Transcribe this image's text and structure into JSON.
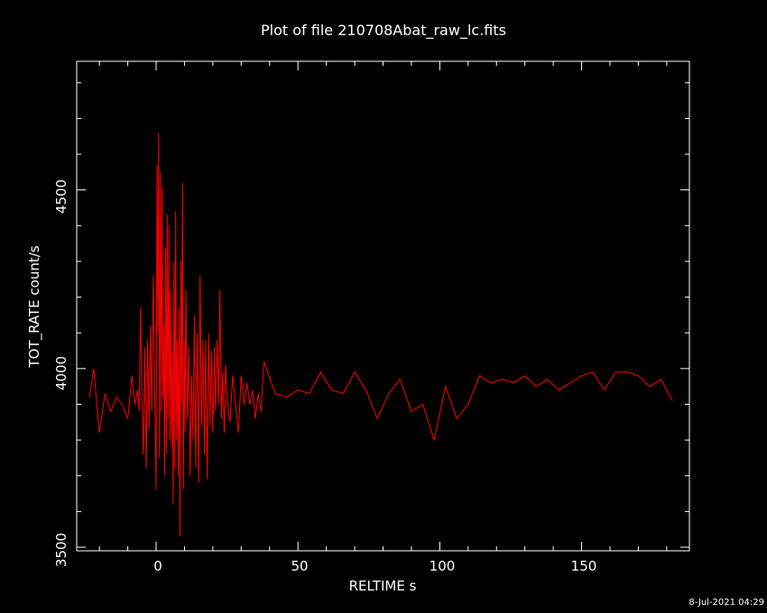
{
  "chart_data": {
    "type": "line",
    "title": "Plot of file 210708Abat_raw_lc.fits",
    "xlabel": "RELTIME  s",
    "ylabel": "TOT_RATE  count/s",
    "xlim": [
      -28,
      188
    ],
    "ylim": [
      3490,
      4860
    ],
    "x_ticks": [
      "0",
      "50",
      "100",
      "150"
    ],
    "y_ticks": [
      "3500",
      "4000",
      "4500"
    ],
    "grid": false,
    "color": "#ff0000",
    "series": [
      {
        "x": [
          -23.5,
          -22,
          -20,
          -18,
          -16,
          -14,
          -12,
          -10,
          -8.5,
          -7.5,
          -6.5,
          -6,
          -5.5,
          -5,
          -4.5,
          -4,
          -3.5,
          -3,
          -2.5,
          -2,
          -1.5,
          -1,
          -0.5,
          0,
          0.3,
          0.6,
          0.9,
          1.2,
          1.5,
          1.8,
          2.1,
          2.4,
          2.7,
          3,
          3.3,
          3.6,
          3.9,
          4.2,
          4.5,
          4.8,
          5.1,
          5.4,
          5.7,
          6,
          6.3,
          6.6,
          6.9,
          7.2,
          7.5,
          7.8,
          8.1,
          8.4,
          8.7,
          9,
          9.3,
          9.6,
          9.9,
          10.2,
          10.5,
          11,
          11.5,
          12,
          12.5,
          13,
          13.5,
          14,
          14.5,
          15,
          15.5,
          16,
          16.5,
          17,
          17.5,
          18,
          18.5,
          19,
          19.5,
          20,
          20.5,
          21,
          21.5,
          22,
          22.5,
          23,
          23.5,
          24,
          24.5,
          25,
          26,
          27,
          28,
          29,
          30,
          31,
          32,
          33,
          34,
          35,
          36,
          37,
          38,
          42,
          46,
          50,
          54,
          58,
          62,
          66,
          70,
          74,
          78,
          82,
          86,
          90,
          94,
          98,
          102,
          106,
          110,
          114,
          118,
          122,
          126,
          130,
          134,
          138,
          142,
          146,
          150,
          154,
          158,
          162,
          166,
          170,
          174,
          178,
          182
        ],
        "y": [
          3920,
          4000,
          3820,
          3930,
          3880,
          3920,
          3900,
          3860,
          3980,
          3900,
          3940,
          3880,
          4170,
          3920,
          3760,
          4060,
          3720,
          4080,
          3830,
          4120,
          3880,
          4260,
          3940,
          3660,
          4570,
          4100,
          4660,
          3750,
          4550,
          3880,
          4510,
          3920,
          4120,
          3700,
          4340,
          3760,
          4430,
          3860,
          4400,
          3800,
          4220,
          3780,
          4050,
          3620,
          4300,
          3720,
          4440,
          3800,
          4080,
          3700,
          4170,
          3530,
          4300,
          3900,
          4520,
          3660,
          4080,
          3820,
          4220,
          3860,
          4060,
          3700,
          3980,
          3800,
          4150,
          3720,
          4100,
          3680,
          4260,
          3840,
          4080,
          3760,
          4080,
          3690,
          4100,
          3840,
          4050,
          3820,
          4060,
          3880,
          4080,
          3900,
          4220,
          3860,
          3990,
          3820,
          4010,
          3920,
          3850,
          3980,
          3900,
          3820,
          3980,
          3900,
          3960,
          3900,
          3940,
          3860,
          3930,
          3880,
          4020,
          3930,
          3920,
          3940,
          3930,
          3990,
          3940,
          3930,
          3990,
          3940,
          3860,
          3930,
          3970,
          3880,
          3900,
          3800,
          3950,
          3860,
          3900,
          3980,
          3960,
          3970,
          3960,
          3980,
          3950,
          3970,
          3940,
          3960,
          3980,
          3990,
          3940,
          3990,
          3990,
          3980,
          3950,
          3970,
          3910
        ]
      }
    ]
  },
  "timestamp": "8-Jul-2021 04:29"
}
